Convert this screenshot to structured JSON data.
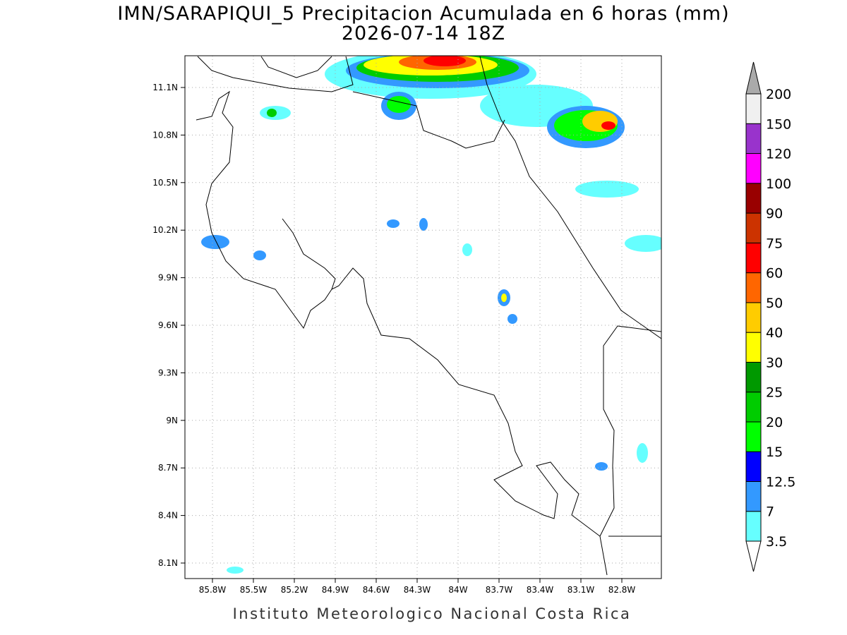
{
  "title": "IMN/SARAPIQUI_5 Precipitacion Acumulada en 6 horas (mm)",
  "subtitle": "2026-07-14 18Z",
  "map": {
    "x_labels": [
      "85.8W",
      "85.5W",
      "85.2W",
      "84.9W",
      "84.6W",
      "84.3W",
      "84W",
      "83.7W",
      "83.4W",
      "83.1W",
      "82.8W"
    ],
    "y_labels": [
      "11.1N",
      "10.8N",
      "10.5N",
      "10.2N",
      "9.9N",
      "9.6N",
      "9.3N",
      "9N",
      "8.7N",
      "8.4N",
      "8.1N"
    ]
  },
  "colorbar": {
    "labels": [
      3.5,
      7,
      12.5,
      15,
      20,
      25,
      30,
      40,
      50,
      60,
      75,
      90,
      100,
      120,
      150,
      200
    ],
    "colors": [
      "#66ffff",
      "#3399ff",
      "#0000ff",
      "#00ff00",
      "#00cc00",
      "#009900",
      "#ffff00",
      "#ffcc00",
      "#ff6600",
      "#ff0000",
      "#cc3300",
      "#990000",
      "#ff00ff",
      "#9933cc",
      "#f0f0f0"
    ],
    "over_color": "#aaaaaa",
    "under_color": "#ffffff"
  },
  "footer": "Instituto Meteorologico Nacional Costa Rica"
}
